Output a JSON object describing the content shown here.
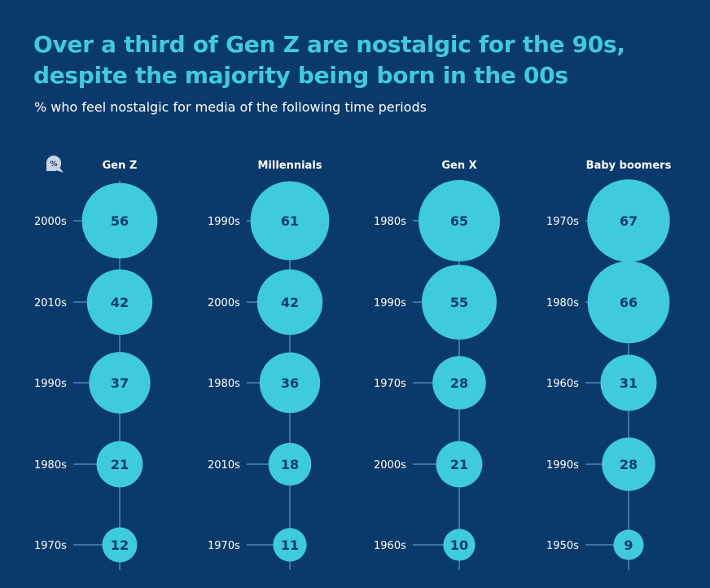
{
  "header": {
    "title": "Over a third of Gen Z are nostalgic for the 90s, despite the majority being born in the 00s",
    "subtitle": "% who feel nostalgic for media of the following time periods",
    "unit_badge": "%"
  },
  "colors": {
    "background": "#0a3a6b",
    "bubble": "#3ecbdf",
    "line": "#4f86b0",
    "text": "#ffffff"
  },
  "chart_data": {
    "type": "bubble-ranking",
    "unit": "%",
    "groups": [
      {
        "name": "Gen Z",
        "items": [
          {
            "period": "2000s",
            "value": 56
          },
          {
            "period": "2010s",
            "value": 42
          },
          {
            "period": "1990s",
            "value": 37
          },
          {
            "period": "1980s",
            "value": 21
          },
          {
            "period": "1970s",
            "value": 12
          }
        ]
      },
      {
        "name": "Millennials",
        "items": [
          {
            "period": "1990s",
            "value": 61
          },
          {
            "period": "2000s",
            "value": 42
          },
          {
            "period": "1980s",
            "value": 36
          },
          {
            "period": "2010s",
            "value": 18
          },
          {
            "period": "1970s",
            "value": 11
          }
        ]
      },
      {
        "name": "Gen X",
        "items": [
          {
            "period": "1980s",
            "value": 65
          },
          {
            "period": "1990s",
            "value": 55
          },
          {
            "period": "1970s",
            "value": 28
          },
          {
            "period": "2000s",
            "value": 21
          },
          {
            "period": "1960s",
            "value": 10
          }
        ]
      },
      {
        "name": "Baby boomers",
        "items": [
          {
            "period": "1970s",
            "value": 67
          },
          {
            "period": "1980s",
            "value": 66
          },
          {
            "period": "1960s",
            "value": 31
          },
          {
            "period": "1990s",
            "value": 28
          },
          {
            "period": "1950s",
            "value": 9
          }
        ]
      }
    ]
  }
}
